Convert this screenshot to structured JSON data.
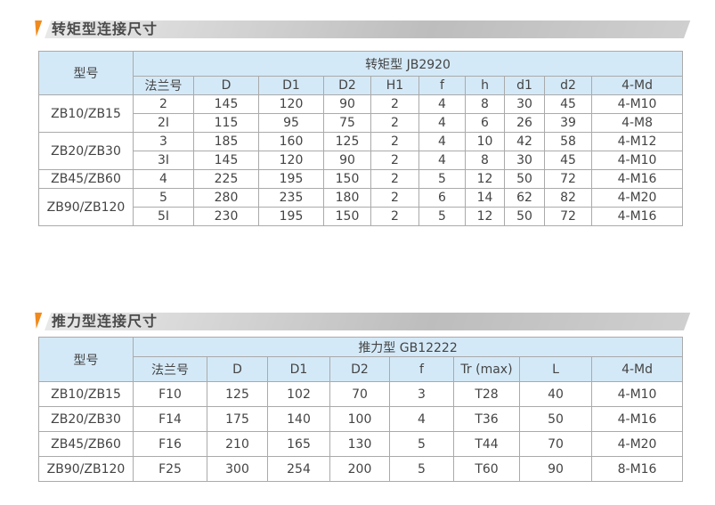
{
  "torque": {
    "section_title": "转矩型连接尺寸",
    "model_header": "型号",
    "group_header": "转矩型 JB2920",
    "columns": [
      "法兰号",
      "D",
      "D1",
      "D2",
      "H1",
      "f",
      "h",
      "d1",
      "d2",
      "4-Md"
    ],
    "groups": [
      {
        "model": "ZB10/ZB15",
        "rows": [
          [
            "2",
            "145",
            "120",
            "90",
            "2",
            "4",
            "8",
            "30",
            "45",
            "4-M10"
          ],
          [
            "2I",
            "115",
            "95",
            "75",
            "2",
            "4",
            "6",
            "26",
            "39",
            "4-M8"
          ]
        ]
      },
      {
        "model": "ZB20/ZB30",
        "rows": [
          [
            "3",
            "185",
            "160",
            "125",
            "2",
            "4",
            "10",
            "42",
            "58",
            "4-M12"
          ],
          [
            "3I",
            "145",
            "120",
            "90",
            "2",
            "4",
            "8",
            "30",
            "45",
            "4-M10"
          ]
        ]
      },
      {
        "model": "ZB45/ZB60",
        "rows": [
          [
            "4",
            "225",
            "195",
            "150",
            "2",
            "5",
            "12",
            "50",
            "72",
            "4-M16"
          ]
        ]
      },
      {
        "model": "ZB90/ZB120",
        "rows": [
          [
            "5",
            "280",
            "235",
            "180",
            "2",
            "6",
            "14",
            "62",
            "82",
            "4-M20"
          ],
          [
            "5I",
            "230",
            "195",
            "150",
            "2",
            "5",
            "12",
            "50",
            "72",
            "4-M16"
          ]
        ]
      }
    ]
  },
  "thrust": {
    "section_title": "推力型连接尺寸",
    "model_header": "型号",
    "group_header": "推力型 GB12222",
    "columns": [
      "法兰号",
      "D",
      "D1",
      "D2",
      "f",
      "Tr (max)",
      "L",
      "4-Md"
    ],
    "rows": [
      {
        "model": "ZB10/ZB15",
        "values": [
          "F10",
          "125",
          "102",
          "70",
          "3",
          "T28",
          "40",
          "4-M10"
        ]
      },
      {
        "model": "ZB20/ZB30",
        "values": [
          "F14",
          "175",
          "140",
          "100",
          "4",
          "T36",
          "50",
          "4-M16"
        ]
      },
      {
        "model": "ZB45/ZB60",
        "values": [
          "F16",
          "210",
          "165",
          "130",
          "5",
          "T44",
          "70",
          "4-M20"
        ]
      },
      {
        "model": "ZB90/ZB120",
        "values": [
          "F25",
          "300",
          "254",
          "200",
          "5",
          "T60",
          "90",
          "8-M16"
        ]
      }
    ]
  },
  "colors": {
    "accent": "#f08a1c",
    "header_bg": "#d4e9f7"
  }
}
